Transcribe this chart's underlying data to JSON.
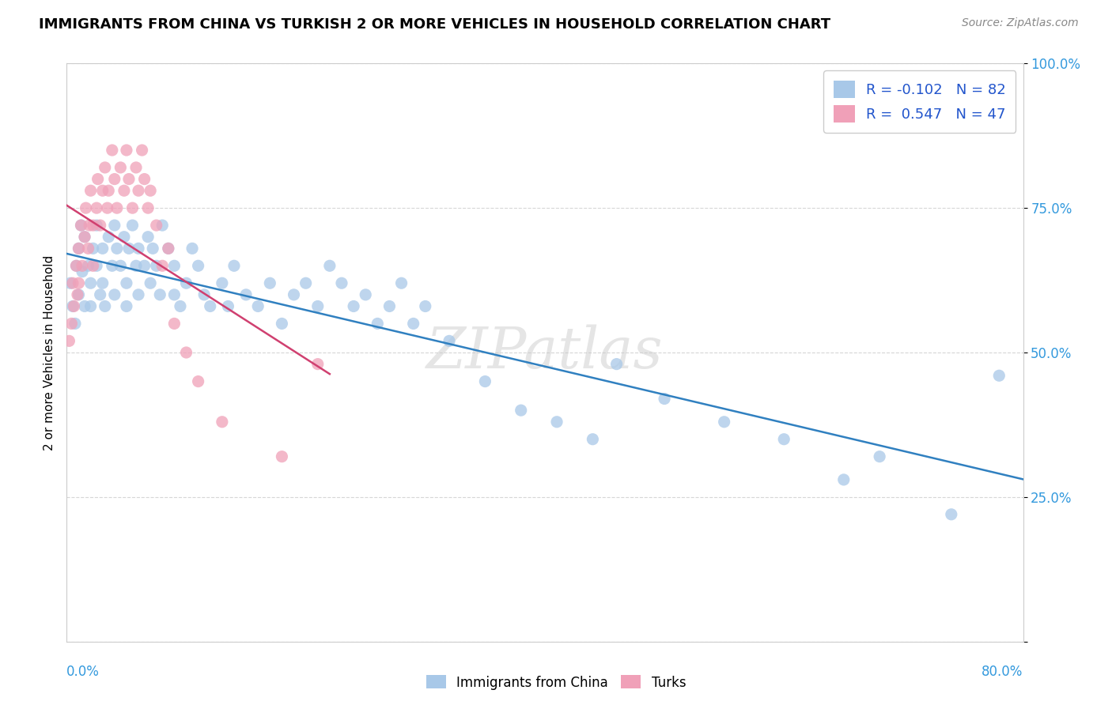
{
  "title": "IMMIGRANTS FROM CHINA VS TURKISH 2 OR MORE VEHICLES IN HOUSEHOLD CORRELATION CHART",
  "source": "Source: ZipAtlas.com",
  "ylabel": "2 or more Vehicles in Household",
  "watermark": "ZIPatlas",
  "china_color": "#a8c8e8",
  "turks_color": "#f0a0b8",
  "china_line_color": "#3080c0",
  "turks_line_color": "#d04070",
  "china_R": -0.102,
  "turks_R": 0.547,
  "china_N": 82,
  "turks_N": 47,
  "xmin": 0.0,
  "xmax": 0.8,
  "ymin": 0.0,
  "ymax": 1.0,
  "china_x": [
    0.003,
    0.005,
    0.007,
    0.008,
    0.01,
    0.01,
    0.012,
    0.013,
    0.015,
    0.015,
    0.018,
    0.02,
    0.02,
    0.022,
    0.025,
    0.025,
    0.028,
    0.03,
    0.03,
    0.032,
    0.035,
    0.038,
    0.04,
    0.04,
    0.042,
    0.045,
    0.048,
    0.05,
    0.05,
    0.052,
    0.055,
    0.058,
    0.06,
    0.06,
    0.065,
    0.068,
    0.07,
    0.072,
    0.075,
    0.078,
    0.08,
    0.085,
    0.09,
    0.09,
    0.095,
    0.1,
    0.105,
    0.11,
    0.115,
    0.12,
    0.13,
    0.135,
    0.14,
    0.15,
    0.16,
    0.17,
    0.18,
    0.19,
    0.2,
    0.21,
    0.22,
    0.23,
    0.24,
    0.25,
    0.26,
    0.27,
    0.28,
    0.29,
    0.3,
    0.32,
    0.35,
    0.38,
    0.41,
    0.44,
    0.46,
    0.5,
    0.55,
    0.6,
    0.65,
    0.68,
    0.74,
    0.78
  ],
  "china_y": [
    0.62,
    0.58,
    0.55,
    0.65,
    0.6,
    0.68,
    0.72,
    0.64,
    0.58,
    0.7,
    0.65,
    0.62,
    0.58,
    0.68,
    0.72,
    0.65,
    0.6,
    0.68,
    0.62,
    0.58,
    0.7,
    0.65,
    0.72,
    0.6,
    0.68,
    0.65,
    0.7,
    0.62,
    0.58,
    0.68,
    0.72,
    0.65,
    0.6,
    0.68,
    0.65,
    0.7,
    0.62,
    0.68,
    0.65,
    0.6,
    0.72,
    0.68,
    0.65,
    0.6,
    0.58,
    0.62,
    0.68,
    0.65,
    0.6,
    0.58,
    0.62,
    0.58,
    0.65,
    0.6,
    0.58,
    0.62,
    0.55,
    0.6,
    0.62,
    0.58,
    0.65,
    0.62,
    0.58,
    0.6,
    0.55,
    0.58,
    0.62,
    0.55,
    0.58,
    0.52,
    0.45,
    0.4,
    0.38,
    0.35,
    0.48,
    0.42,
    0.38,
    0.35,
    0.28,
    0.32,
    0.22,
    0.46
  ],
  "turks_x": [
    0.002,
    0.004,
    0.005,
    0.006,
    0.008,
    0.009,
    0.01,
    0.01,
    0.012,
    0.013,
    0.015,
    0.016,
    0.018,
    0.019,
    0.02,
    0.022,
    0.022,
    0.025,
    0.026,
    0.028,
    0.03,
    0.032,
    0.034,
    0.035,
    0.038,
    0.04,
    0.042,
    0.045,
    0.048,
    0.05,
    0.052,
    0.055,
    0.058,
    0.06,
    0.063,
    0.065,
    0.068,
    0.07,
    0.075,
    0.08,
    0.085,
    0.09,
    0.1,
    0.11,
    0.13,
    0.18,
    0.21
  ],
  "turks_y": [
    0.52,
    0.55,
    0.62,
    0.58,
    0.65,
    0.6,
    0.68,
    0.62,
    0.72,
    0.65,
    0.7,
    0.75,
    0.68,
    0.72,
    0.78,
    0.65,
    0.72,
    0.75,
    0.8,
    0.72,
    0.78,
    0.82,
    0.75,
    0.78,
    0.85,
    0.8,
    0.75,
    0.82,
    0.78,
    0.85,
    0.8,
    0.75,
    0.82,
    0.78,
    0.85,
    0.8,
    0.75,
    0.78,
    0.72,
    0.65,
    0.68,
    0.55,
    0.5,
    0.45,
    0.38,
    0.32,
    0.48
  ]
}
